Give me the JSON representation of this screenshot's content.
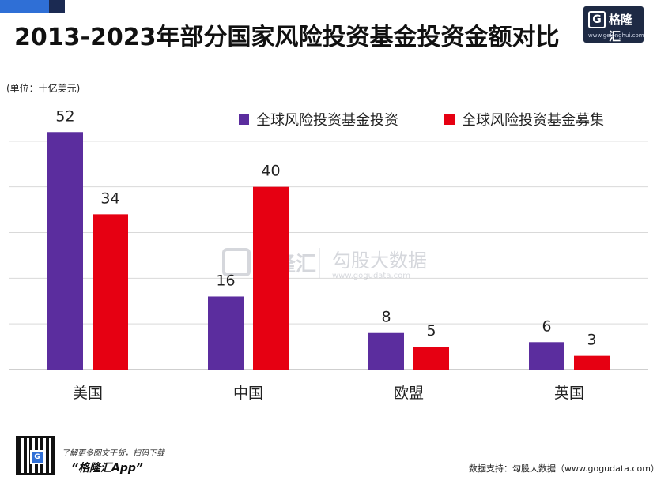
{
  "header": {
    "title": "2013-2023年部分国家风险投资基金投资金额对比",
    "logo_text": "格隆汇",
    "logo_url": "www.gelonghui.com"
  },
  "unit_label": "(单位：十亿美元)",
  "watermark": {
    "brand": "格隆汇",
    "name": "勾股大数据",
    "url": "www.gogudata.com"
  },
  "footer": {
    "cta": "了解更多图文干货，扫码下载",
    "app": "“格隆汇App”",
    "source": "数据支持：勾股大数据（www.gogudata.com）"
  },
  "colors": {
    "series_investment": "#5b2d9e",
    "series_fundraising": "#e60012",
    "gridline": "#d9d9d9",
    "accent_blue": "#2f6fd6"
  },
  "chart_data": {
    "type": "bar",
    "title": "2013-2023年部分国家风险投资基金投资金额对比",
    "ylabel": "(单位：十亿美元)",
    "categories": [
      "美国",
      "中国",
      "欧盟",
      "英国"
    ],
    "series": [
      {
        "name": "全球风险投资基金投资",
        "values": [
          52,
          16,
          8,
          6
        ]
      },
      {
        "name": "全球风险投资基金募集",
        "values": [
          34,
          40,
          5,
          3
        ]
      }
    ],
    "ylim": [
      0,
      60
    ],
    "grid": true,
    "legend_position": "top-right"
  }
}
